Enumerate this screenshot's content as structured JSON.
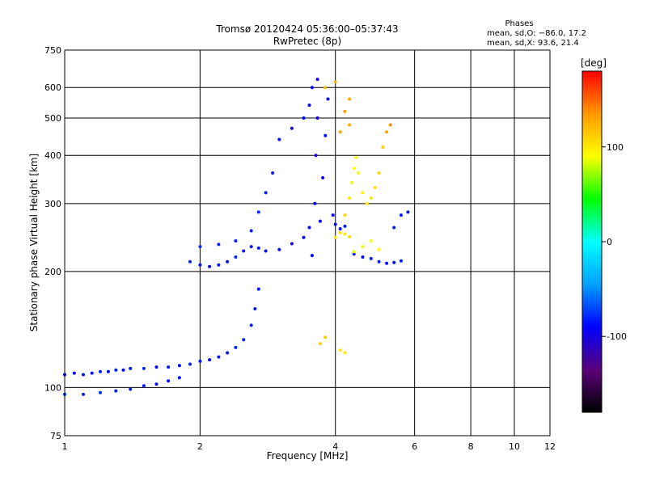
{
  "chart_data": {
    "type": "scatter",
    "title": "Tromsø 20120424 05:36:00–05:37:43",
    "subtitle": "RwPretec (8p)",
    "xlabel": "Frequency [MHz]",
    "ylabel": "Stationary phase Virtual Height [km]",
    "x_scale": "log",
    "y_scale": "log",
    "xlim": [
      1,
      12
    ],
    "ylim": [
      75,
      750
    ],
    "x_ticks": [
      1,
      2,
      4,
      6,
      8,
      10,
      12
    ],
    "y_ticks": [
      75,
      100,
      200,
      300,
      400,
      500,
      600,
      750
    ],
    "grid": true,
    "stats": {
      "title": "Phases",
      "line_o": "mean, sd,O: −86.0, 17.2",
      "line_x": "mean, sd,X: 93.6, 21.4"
    },
    "colorbar": {
      "label": "[deg]",
      "ticks": [
        100,
        0,
        -100
      ],
      "range": [
        -180,
        180
      ],
      "colors": [
        "#000000",
        "#5a007a",
        "#0000ff",
        "#00a0ff",
        "#00ffff",
        "#00ff00",
        "#ffff00",
        "#ff9900",
        "#ff0000"
      ]
    },
    "series": [
      {
        "points": [
          [
            1.0,
            108,
            -90
          ],
          [
            1.05,
            109,
            -88
          ],
          [
            1.1,
            108,
            -85
          ],
          [
            1.15,
            109,
            -87
          ],
          [
            1.2,
            110,
            -84
          ],
          [
            1.25,
            110,
            -86
          ],
          [
            1.3,
            111,
            -82
          ],
          [
            1.35,
            111,
            -88
          ],
          [
            1.4,
            112,
            -85
          ],
          [
            1.5,
            112,
            -80
          ],
          [
            1.6,
            113,
            -87
          ],
          [
            1.7,
            113,
            -84
          ],
          [
            1.8,
            114,
            -86
          ],
          [
            1.9,
            115,
            -83
          ],
          [
            2.0,
            117,
            -85
          ],
          [
            2.1,
            118,
            -88
          ],
          [
            2.2,
            120,
            -84
          ],
          [
            2.3,
            123,
            -86
          ],
          [
            2.4,
            127,
            -80
          ],
          [
            2.5,
            133,
            -82
          ],
          [
            2.6,
            145,
            -85
          ],
          [
            2.65,
            160,
            -84
          ],
          [
            2.7,
            180,
            -86
          ],
          [
            1.0,
            96,
            -80
          ],
          [
            1.1,
            96,
            -82
          ],
          [
            1.2,
            97,
            -78
          ],
          [
            1.3,
            98,
            -80
          ],
          [
            1.4,
            99,
            -83
          ],
          [
            1.5,
            101,
            -84
          ],
          [
            1.6,
            102,
            -86
          ],
          [
            1.7,
            104,
            -88
          ],
          [
            1.8,
            106,
            -85
          ],
          [
            1.9,
            212,
            -80
          ],
          [
            2.0,
            208,
            -85
          ],
          [
            2.1,
            206,
            -88
          ],
          [
            2.2,
            208,
            -84
          ],
          [
            2.3,
            212,
            -86
          ],
          [
            2.4,
            218,
            -80
          ],
          [
            2.5,
            226,
            -82
          ],
          [
            2.6,
            232,
            -85
          ],
          [
            2.7,
            230,
            -84
          ],
          [
            2.8,
            226,
            -86
          ],
          [
            3.0,
            228,
            -88
          ],
          [
            3.2,
            236,
            -90
          ],
          [
            3.4,
            245,
            -92
          ],
          [
            3.5,
            260,
            -90
          ],
          [
            2.0,
            232,
            -78
          ],
          [
            2.2,
            235,
            -80
          ],
          [
            2.4,
            240,
            -82
          ],
          [
            2.6,
            255,
            -84
          ],
          [
            2.7,
            285,
            -80
          ],
          [
            2.8,
            320,
            -82
          ],
          [
            2.9,
            360,
            -84
          ],
          [
            3.0,
            440,
            -88
          ],
          [
            3.2,
            470,
            -90
          ],
          [
            3.4,
            500,
            -92
          ],
          [
            3.5,
            540,
            -90
          ],
          [
            3.55,
            600,
            -92
          ],
          [
            3.65,
            630,
            -94
          ],
          [
            3.55,
            220,
            -90
          ],
          [
            3.6,
            300,
            -92
          ],
          [
            3.62,
            400,
            -94
          ],
          [
            3.65,
            500,
            -95
          ],
          [
            3.7,
            270,
            -92
          ],
          [
            3.75,
            350,
            -90
          ],
          [
            3.8,
            450,
            -88
          ],
          [
            3.85,
            560,
            -86
          ],
          [
            3.95,
            280,
            -90
          ],
          [
            4.0,
            265,
            -88
          ],
          [
            4.1,
            258,
            -86
          ],
          [
            4.2,
            262,
            -84
          ],
          [
            4.4,
            222,
            -85
          ],
          [
            4.6,
            218,
            -86
          ],
          [
            4.8,
            216,
            -84
          ],
          [
            5.0,
            212,
            -82
          ],
          [
            5.2,
            210,
            -86
          ],
          [
            5.4,
            211,
            -88
          ],
          [
            5.6,
            213,
            -84
          ],
          [
            5.4,
            260,
            -82
          ],
          [
            5.6,
            280,
            -84
          ],
          [
            5.8,
            285,
            -86
          ],
          [
            4.0,
            245,
            100
          ],
          [
            4.1,
            252,
            102
          ],
          [
            4.2,
            250,
            98
          ],
          [
            4.3,
            246,
            105
          ],
          [
            4.2,
            280,
            110
          ],
          [
            4.3,
            310,
            100
          ],
          [
            4.35,
            340,
            95
          ],
          [
            4.4,
            370,
            92
          ],
          [
            4.45,
            395,
            88
          ],
          [
            4.5,
            360,
            94
          ],
          [
            4.6,
            320,
            96
          ],
          [
            4.7,
            300,
            98
          ],
          [
            4.8,
            310,
            102
          ],
          [
            4.9,
            330,
            104
          ],
          [
            5.0,
            360,
            108
          ],
          [
            5.1,
            420,
            112
          ],
          [
            5.2,
            460,
            130
          ],
          [
            5.3,
            480,
            140
          ],
          [
            4.1,
            460,
            130
          ],
          [
            4.2,
            520,
            135
          ],
          [
            4.3,
            480,
            128
          ],
          [
            4.4,
            225,
            85
          ],
          [
            4.6,
            232,
            86
          ],
          [
            4.8,
            240,
            88
          ],
          [
            5.0,
            228,
            90
          ],
          [
            3.8,
            600,
            120
          ],
          [
            4.0,
            620,
            125
          ],
          [
            4.3,
            560,
            130
          ],
          [
            4.1,
            125,
            100
          ],
          [
            4.2,
            123,
            96
          ],
          [
            3.8,
            135,
            115
          ],
          [
            3.7,
            130,
            110
          ]
        ]
      }
    ]
  }
}
